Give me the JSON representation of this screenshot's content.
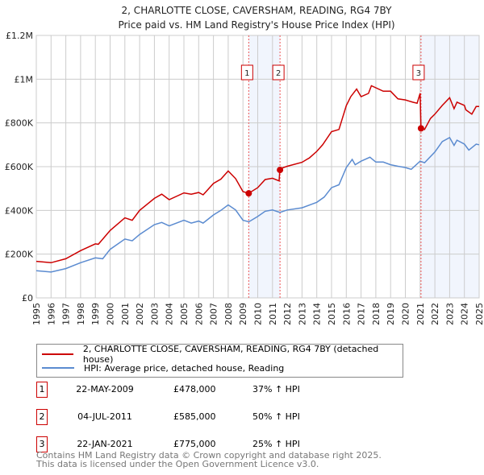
{
  "chart_data": {
    "type": "line",
    "title": "2, CHARLOTTE CLOSE, CAVERSHAM, READING, RG4 7BY",
    "subtitle": "Price paid vs. HM Land Registry's House Price Index (HPI)",
    "xlabel": "",
    "ylabel": "",
    "xlim": [
      1995,
      2025
    ],
    "ylim": [
      0,
      1200000
    ],
    "grid": true,
    "y_ticks": [
      {
        "v": 0,
        "label": "£0"
      },
      {
        "v": 200000,
        "label": "£200K"
      },
      {
        "v": 400000,
        "label": "£400K"
      },
      {
        "v": 600000,
        "label": "£600K"
      },
      {
        "v": 800000,
        "label": "£800K"
      },
      {
        "v": 1000000,
        "label": "£1M"
      },
      {
        "v": 1200000,
        "label": "£1.2M"
      }
    ],
    "x_ticks": [
      "1995",
      "1996",
      "1997",
      "1998",
      "1999",
      "2000",
      "2001",
      "2002",
      "2003",
      "2004",
      "2005",
      "2006",
      "2007",
      "2008",
      "2009",
      "2010",
      "2011",
      "2012",
      "2013",
      "2014",
      "2015",
      "2016",
      "2017",
      "2018",
      "2019",
      "2020",
      "2021",
      "2022",
      "2023",
      "2024",
      "2025"
    ],
    "series": [
      {
        "name": "2, CHARLOTTE CLOSE, CAVERSHAM, READING, RG4 7BY (detached house)",
        "color": "#cc0000",
        "x": [
          1995,
          1996,
          1997,
          1998,
          1999,
          1999.2,
          2000,
          2001,
          2001.5,
          2002,
          2003,
          2003.5,
          2004,
          2005,
          2005.5,
          2006,
          2006.3,
          2007,
          2007.5,
          2008,
          2008.5,
          2009,
          2009.39,
          2010,
          2010.5,
          2011,
          2011.45,
          2011.5,
          2012,
          2013,
          2013.5,
          2014,
          2014.4,
          2015,
          2015.5,
          2016,
          2016.3,
          2016.7,
          2017,
          2017.5,
          2017.7,
          2018.5,
          2019,
          2019.5,
          2020,
          2020.5,
          2020.8,
          2021.0,
          2021.06,
          2021.3,
          2021.7,
          2022,
          2022.5,
          2023,
          2023.3,
          2023.5,
          2024,
          2024.1,
          2024.5,
          2024.8,
          2025
        ],
        "y": [
          167000,
          161000,
          179000,
          216000,
          247000,
          245000,
          308000,
          366000,
          355000,
          400000,
          455000,
          474000,
          449000,
          480000,
          474000,
          482000,
          471000,
          523000,
          543000,
          580000,
          545000,
          486000,
          478000,
          504000,
          541000,
          547000,
          535000,
          590000,
          602000,
          620000,
          640000,
          670000,
          700000,
          760000,
          770000,
          879000,
          920000,
          955000,
          920000,
          935000,
          970000,
          945000,
          945000,
          910000,
          905000,
          895000,
          890000,
          935000,
          775000,
          770000,
          820000,
          840000,
          880000,
          915000,
          865000,
          895000,
          880000,
          860000,
          840000,
          875000,
          875000
        ]
      },
      {
        "name": "HPI: Average price, detached house, Reading",
        "color": "#5b8bd0",
        "x": [
          1995,
          1996,
          1997,
          1998,
          1999,
          1999.5,
          2000,
          2001,
          2001.5,
          2002,
          2003,
          2003.5,
          2004,
          2005,
          2005.5,
          2006,
          2006.3,
          2007,
          2007.5,
          2008,
          2008.5,
          2009,
          2009.4,
          2010,
          2010.5,
          2011,
          2011.5,
          2012,
          2013,
          2014,
          2014.5,
          2015,
          2015.5,
          2016,
          2016.4,
          2016.6,
          2017,
          2017.6,
          2018,
          2018.5,
          2019,
          2019.5,
          2020,
          2020.4,
          2021,
          2021.3,
          2022,
          2022.5,
          2023,
          2023.3,
          2023.5,
          2024,
          2024.3,
          2024.8,
          2025
        ],
        "y": [
          124000,
          118000,
          134000,
          161000,
          183000,
          179000,
          222000,
          269000,
          261000,
          290000,
          335000,
          345000,
          329000,
          355000,
          342000,
          351000,
          342000,
          379000,
          400000,
          425000,
          402000,
          355000,
          348000,
          372000,
          396000,
          402000,
          391000,
          402000,
          412000,
          437000,
          461000,
          504000,
          517000,
          596000,
          633000,
          609000,
          625000,
          643000,
          621000,
          621000,
          609000,
          602000,
          596000,
          588000,
          625000,
          618000,
          667000,
          715000,
          733000,
          697000,
          721000,
          703000,
          676000,
          703000,
          700000
        ]
      }
    ],
    "sales": [
      {
        "id": "1",
        "x": 2009.39,
        "price": 478000
      },
      {
        "id": "2",
        "x": 2011.51,
        "price": 585000
      },
      {
        "id": "3",
        "x": 2021.06,
        "price": 775000
      }
    ],
    "shaded_ranges": [
      [
        2009.39,
        2011.51
      ],
      [
        2021.06,
        2025
      ]
    ],
    "legend": "below"
  },
  "legend": {
    "items": [
      {
        "label": "2, CHARLOTTE CLOSE, CAVERSHAM, READING, RG4 7BY (detached house)",
        "color": "#cc0000"
      },
      {
        "label": "HPI: Average price, detached house, Reading",
        "color": "#5b8bd0"
      }
    ]
  },
  "sales_table": [
    {
      "num": "1",
      "date": "22-MAY-2009",
      "price": "£478,000",
      "hpi": "37% ↑ HPI"
    },
    {
      "num": "2",
      "date": "04-JUL-2011",
      "price": "£585,000",
      "hpi": "50% ↑ HPI"
    },
    {
      "num": "3",
      "date": "22-JAN-2021",
      "price": "£775,000",
      "hpi": "25% ↑ HPI"
    }
  ],
  "footer": {
    "line1": "Contains HM Land Registry data © Crown copyright and database right 2025.",
    "line2": "This data is licensed under the Open Government Licence v3.0."
  }
}
